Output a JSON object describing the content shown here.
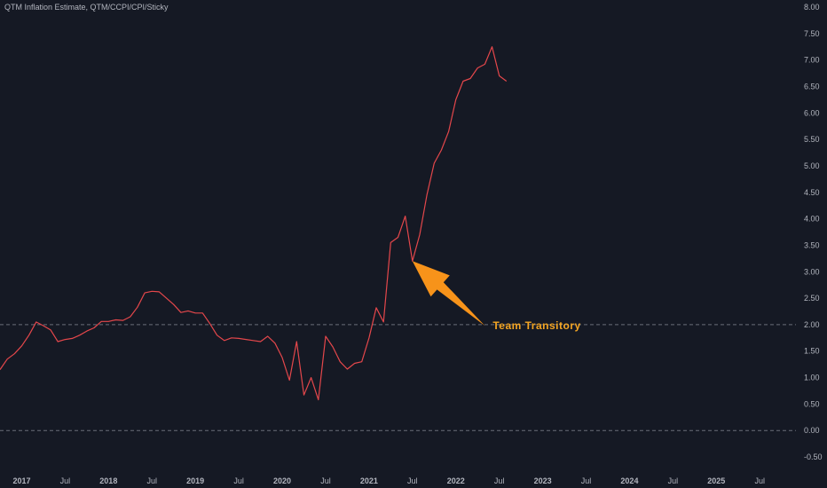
{
  "chart_data": {
    "type": "line",
    "title": "QTM Inflation Estimate, QTM/CCPI/CPI/Sticky",
    "xlabel": "",
    "ylabel": "",
    "grid": false,
    "colors": {
      "background": "#151924",
      "line": "#e4474b",
      "reference": "#6b6f79",
      "arrow": "#f7931a",
      "annotation": "#f5a623",
      "text": "#b2b5be"
    },
    "ylim": [
      -0.6,
      8.0
    ],
    "xlim": [
      "2016-10",
      "2025-12"
    ],
    "y_ticks": [
      "8.00",
      "7.50",
      "7.00",
      "6.50",
      "6.00",
      "5.50",
      "5.00",
      "4.50",
      "4.00",
      "3.50",
      "3.00",
      "2.50",
      "2.00",
      "1.50",
      "1.00",
      "0.50",
      "0.00",
      "-0.50"
    ],
    "x_ticks": [
      {
        "label": "2017",
        "date": "2017-01"
      },
      {
        "label": "Jul",
        "date": "2017-07"
      },
      {
        "label": "2018",
        "date": "2018-01"
      },
      {
        "label": "Jul",
        "date": "2018-07"
      },
      {
        "label": "2019",
        "date": "2019-01"
      },
      {
        "label": "Jul",
        "date": "2019-07"
      },
      {
        "label": "2020",
        "date": "2020-01"
      },
      {
        "label": "Jul",
        "date": "2020-07"
      },
      {
        "label": "2021",
        "date": "2021-01"
      },
      {
        "label": "Jul",
        "date": "2021-07"
      },
      {
        "label": "2022",
        "date": "2022-01"
      },
      {
        "label": "Jul",
        "date": "2022-07"
      },
      {
        "label": "2023",
        "date": "2023-01"
      },
      {
        "label": "Jul",
        "date": "2023-07"
      },
      {
        "label": "2024",
        "date": "2024-01"
      },
      {
        "label": "Jul",
        "date": "2024-07"
      },
      {
        "label": "2025",
        "date": "2025-01"
      },
      {
        "label": "Jul",
        "date": "2025-07"
      }
    ],
    "reference_lines": [
      2.0,
      0.0
    ],
    "series": [
      {
        "x": [
          "2016-10",
          "2016-11",
          "2016-12",
          "2017-01",
          "2017-02",
          "2017-03",
          "2017-04",
          "2017-05",
          "2017-06",
          "2017-07",
          "2017-08",
          "2017-09",
          "2017-10",
          "2017-11",
          "2017-12",
          "2018-01",
          "2018-02",
          "2018-03",
          "2018-04",
          "2018-05",
          "2018-06",
          "2018-07",
          "2018-08",
          "2018-09",
          "2018-10",
          "2018-11",
          "2018-12",
          "2019-01",
          "2019-02",
          "2019-03",
          "2019-04",
          "2019-05",
          "2019-06",
          "2019-07",
          "2019-08",
          "2019-09",
          "2019-10",
          "2019-11",
          "2019-12",
          "2020-01",
          "2020-02",
          "2020-03",
          "2020-04",
          "2020-05",
          "2020-06",
          "2020-07",
          "2020-08",
          "2020-09",
          "2020-10",
          "2020-11",
          "2020-12",
          "2021-01",
          "2021-02",
          "2021-03",
          "2021-04",
          "2021-05",
          "2021-06",
          "2021-07",
          "2021-08",
          "2021-09",
          "2021-10",
          "2021-11",
          "2021-12",
          "2022-01",
          "2022-02",
          "2022-03",
          "2022-04",
          "2022-05",
          "2022-06",
          "2022-07",
          "2022-08"
        ],
        "values": [
          1.15,
          1.35,
          1.45,
          1.6,
          1.8,
          2.05,
          1.98,
          1.9,
          1.68,
          1.72,
          1.74,
          1.8,
          1.88,
          1.94,
          2.06,
          2.06,
          2.09,
          2.08,
          2.15,
          2.33,
          2.6,
          2.63,
          2.62,
          2.5,
          2.38,
          2.23,
          2.26,
          2.22,
          2.22,
          2.02,
          1.8,
          1.7,
          1.75,
          1.74,
          1.72,
          1.7,
          1.68,
          1.78,
          1.65,
          1.38,
          0.95,
          1.68,
          0.67,
          1.0,
          0.58,
          1.78,
          1.58,
          1.3,
          1.16,
          1.27,
          1.3,
          1.75,
          2.32,
          2.05,
          3.55,
          3.65,
          4.05,
          3.2,
          3.7,
          4.45,
          5.05,
          5.3,
          5.65,
          6.25,
          6.6,
          6.65,
          6.85,
          6.92,
          7.25,
          6.7,
          6.6
        ]
      }
    ],
    "annotation": {
      "text": "Team Transitory",
      "tail": {
        "date": "2022-05",
        "value": 1.98
      },
      "tip": {
        "date": "2021-07",
        "value": 3.2
      }
    }
  }
}
